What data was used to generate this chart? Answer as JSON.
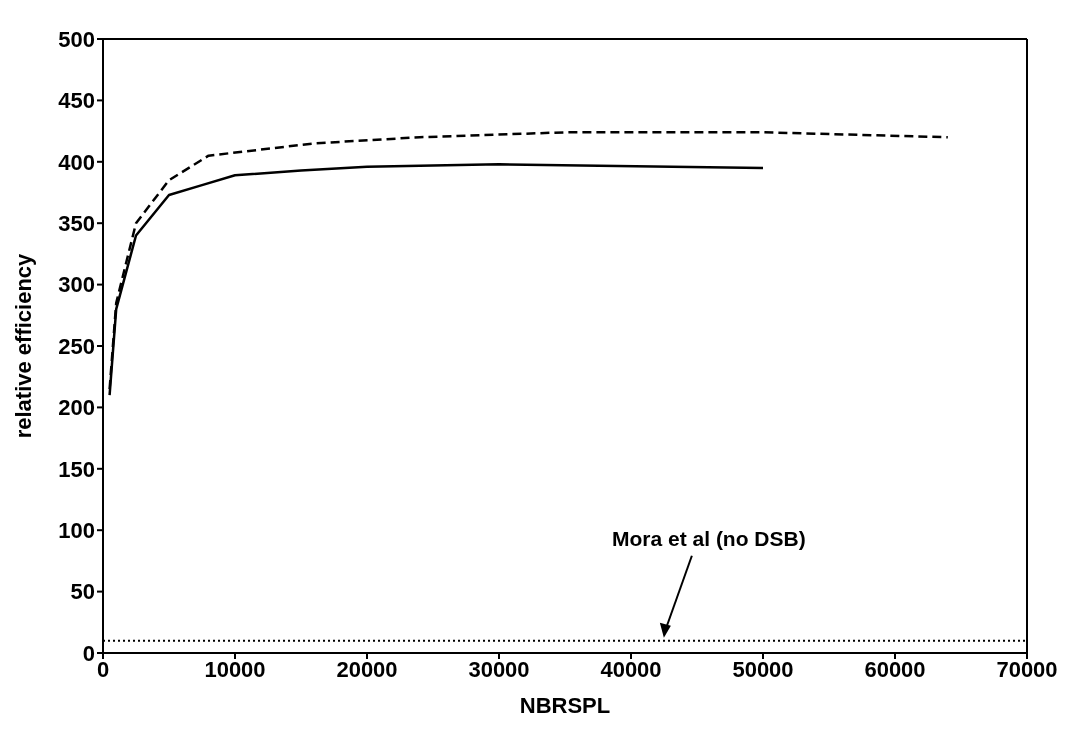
{
  "chart_data": {
    "type": "line",
    "xlabel": "NBRSPL",
    "ylabel": "relative efficiency",
    "series": [
      {
        "color": "#000000",
        "line_style": "solid",
        "x": [
          500,
          1000,
          2500,
          5000,
          7500,
          10000,
          15000,
          20000,
          30000,
          50000
        ],
        "values": [
          210,
          280,
          340,
          373,
          381,
          389,
          393,
          396,
          398,
          395
        ]
      },
      {
        "color": "#000000",
        "line_style": "dashed",
        "x": [
          500,
          1000,
          2500,
          5000,
          8000,
          16000,
          24000,
          35000,
          50000,
          64000
        ],
        "values": [
          215,
          285,
          350,
          385,
          405,
          415,
          420,
          424,
          424,
          420
        ]
      }
    ],
    "xlim": [
      0,
      70000
    ],
    "xticks": [
      0,
      10000,
      20000,
      30000,
      40000,
      50000,
      60000,
      70000
    ],
    "ylim": [
      0,
      500
    ],
    "yticks": [
      0,
      50,
      100,
      150,
      200,
      250,
      300,
      350,
      400,
      450,
      500
    ],
    "ref_lines": [
      {
        "axis": "y",
        "value": 10,
        "line_style": "dotted",
        "color": "#000000"
      }
    ],
    "annotations": [
      "Mora et al (no DSB)"
    ],
    "marker": "none"
  }
}
